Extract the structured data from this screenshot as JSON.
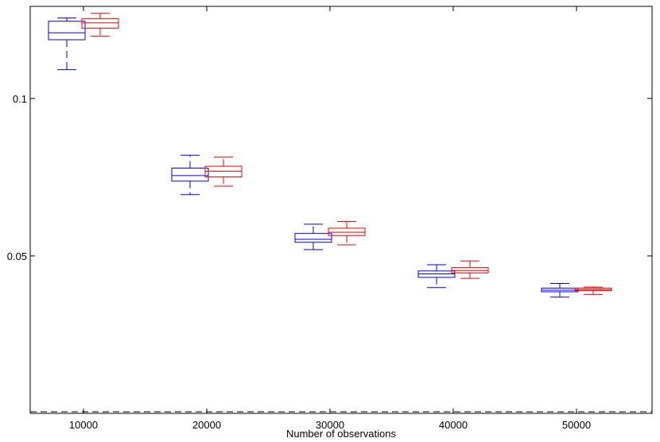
{
  "chart_data": {
    "type": "box",
    "title": "",
    "xlabel": "Number of observations",
    "ylabel": "",
    "categories": [
      "10000",
      "20000",
      "30000",
      "40000",
      "50000"
    ],
    "ylim": [
      0.025,
      0.15
    ],
    "yscale": "log",
    "yticks": [
      {
        "value": 0.05,
        "label": "0.05"
      },
      {
        "value": 0.1,
        "label": "0.1"
      }
    ],
    "reference_line": {
      "value": 0.025,
      "style": "dashed",
      "color": "#000000"
    },
    "grid": false,
    "series": [
      {
        "color": "#0000ff",
        "boxes": [
          {
            "whisker_low": 0.1135,
            "q1": 0.1295,
            "median": 0.1335,
            "q3": 0.1405,
            "whisker_high": 0.1425
          },
          {
            "whisker_low": 0.0655,
            "q1": 0.0695,
            "median": 0.0712,
            "q3": 0.0736,
            "whisker_high": 0.0779
          },
          {
            "whisker_low": 0.0514,
            "q1": 0.0531,
            "median": 0.0538,
            "q3": 0.0552,
            "whisker_high": 0.0575
          },
          {
            "whisker_low": 0.0435,
            "q1": 0.0455,
            "median": 0.0462,
            "q3": 0.0468,
            "whisker_high": 0.0481
          },
          {
            "whisker_low": 0.0417,
            "q1": 0.0427,
            "median": 0.043,
            "q3": 0.0434,
            "whisker_high": 0.0443
          }
        ]
      },
      {
        "color": "#ff0000",
        "boxes": [
          {
            "whisker_low": 0.1315,
            "q1": 0.1362,
            "median": 0.1395,
            "q3": 0.142,
            "whisker_high": 0.1455
          },
          {
            "whisker_low": 0.068,
            "q1": 0.0708,
            "median": 0.0726,
            "q3": 0.0742,
            "whisker_high": 0.0772
          },
          {
            "whisker_low": 0.0525,
            "q1": 0.0547,
            "median": 0.0555,
            "q3": 0.0565,
            "whisker_high": 0.0582
          },
          {
            "whisker_low": 0.0453,
            "q1": 0.0464,
            "median": 0.0469,
            "q3": 0.0475,
            "whisker_high": 0.0489
          },
          {
            "whisker_low": 0.0422,
            "q1": 0.0429,
            "median": 0.0431,
            "q3": 0.0434,
            "whisker_high": 0.0436
          }
        ]
      }
    ]
  }
}
